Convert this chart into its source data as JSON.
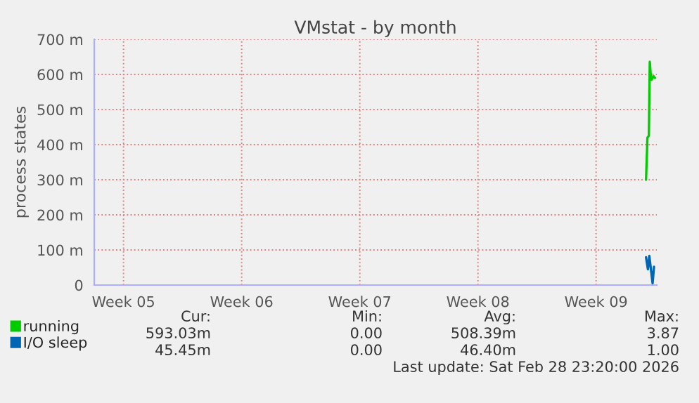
{
  "chart_data": {
    "type": "line",
    "title": "VMstat - by month",
    "ylabel": "process states",
    "xlim": [
      "2026-01-26T15:20",
      "2026-02-28T23:20"
    ],
    "xticks": [
      {
        "value": "2026-01-28T09:00",
        "label": "Week 05"
      },
      {
        "value": "2026-02-04T09:00",
        "label": "Week 06"
      },
      {
        "value": "2026-02-11T09:00",
        "label": "Week 07"
      },
      {
        "value": "2026-02-18T09:00",
        "label": "Week 08"
      },
      {
        "value": "2026-02-25T09:00",
        "label": "Week 09"
      }
    ],
    "ylim": [
      0,
      700
    ],
    "yticks": [
      0,
      {
        "value": 100,
        "label": "100 m"
      },
      {
        "value": 200,
        "label": "200 m"
      },
      {
        "value": 300,
        "label": "300 m"
      },
      {
        "value": 400,
        "label": "400 m"
      },
      {
        "value": 500,
        "label": "500 m"
      },
      {
        "value": 600,
        "label": "600 m"
      },
      {
        "value": 700,
        "label": "700 m"
      }
    ],
    "grid": true,
    "legend": "bottom left",
    "series": [
      {
        "name": "running",
        "color": "#00cc00",
        "x": [
          "2026-02-28T08:00",
          "2026-02-28T10:00",
          "2026-02-28T12:00",
          "2026-02-28T13:20",
          "2026-02-28T14:40",
          "2026-02-28T16:00",
          "2026-02-28T18:40",
          "2026-02-28T20:40"
        ],
        "values": [
          300,
          420,
          425,
          636,
          600,
          585,
          595,
          590
        ]
      },
      {
        "name": "I/O sleep",
        "color": "#0066b3",
        "x": [
          "2026-02-28T08:00",
          "2026-02-28T10:40",
          "2026-02-28T12:40",
          "2026-02-28T15:20",
          "2026-02-28T17:20",
          "2026-02-28T19:20"
        ],
        "values": [
          79,
          45,
          83,
          39,
          5,
          52
        ]
      }
    ],
    "annotations": [
      "Cur:",
      "Min:",
      "Avg:",
      "Max:",
      "593.03m",
      "0.00",
      "508.39m",
      "3.87",
      "45.45m",
      "0.00",
      "46.40m",
      "1.00",
      "Last update: Sat Feb 28 23:20:00 2026"
    ]
  }
}
